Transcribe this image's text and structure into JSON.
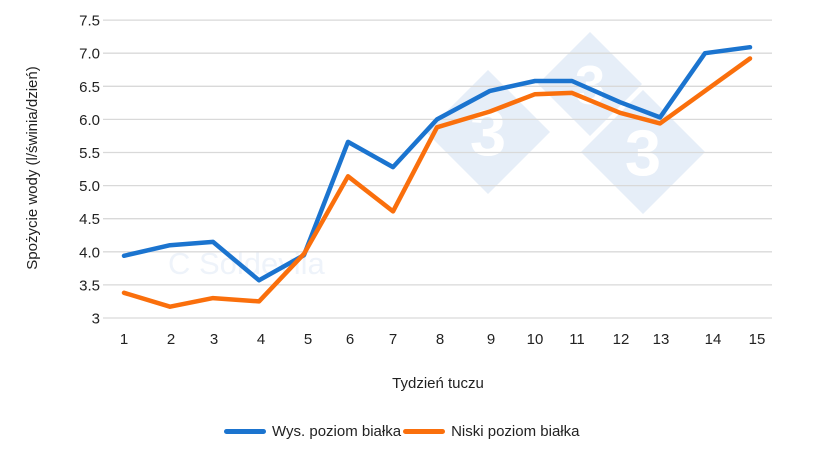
{
  "chart_data": {
    "type": "line",
    "title": "",
    "xlabel": "Tydzień tuczu",
    "ylabel": "Spożycie wody (l/świnia/dzień)",
    "ylim": [
      3,
      7.5
    ],
    "yticks": [
      "3",
      "3.5",
      "4.0",
      "4.5",
      "5.0",
      "5.5",
      "6.0",
      "6.5",
      "7.0",
      "7.5"
    ],
    "grid": true,
    "legend_position": "bottom",
    "x": [
      1,
      2,
      3,
      4,
      5,
      6,
      7,
      8,
      9,
      10,
      11,
      12,
      13,
      14,
      15
    ],
    "categories": [
      "1",
      "2",
      "3",
      "4",
      "5",
      "6",
      "7",
      "8",
      "9",
      "10",
      "11",
      "12",
      "13",
      "14",
      "15"
    ],
    "series": [
      {
        "name": "Wys. poziom białka",
        "color": "#1b74cf",
        "values": [
          3.94,
          4.1,
          4.15,
          3.57,
          3.95,
          5.66,
          5.28,
          6.0,
          6.43,
          6.58,
          6.58,
          6.26,
          6.03,
          7.0,
          7.09
        ]
      },
      {
        "name": "Niski poziom białka",
        "color": "#fa6f0c",
        "values": [
          3.38,
          3.17,
          3.3,
          3.25,
          3.97,
          5.14,
          4.61,
          5.88,
          6.12,
          6.38,
          6.4,
          6.1,
          5.94,
          6.43,
          6.92
        ]
      }
    ],
    "watermark": {
      "text": "C Soldevila",
      "logo": "333"
    }
  },
  "legend": {
    "items": [
      {
        "label": "Wys. poziom białka",
        "color": "#1b74cf"
      },
      {
        "label": "Niski poziom białka",
        "color": "#fa6f0c"
      }
    ]
  }
}
